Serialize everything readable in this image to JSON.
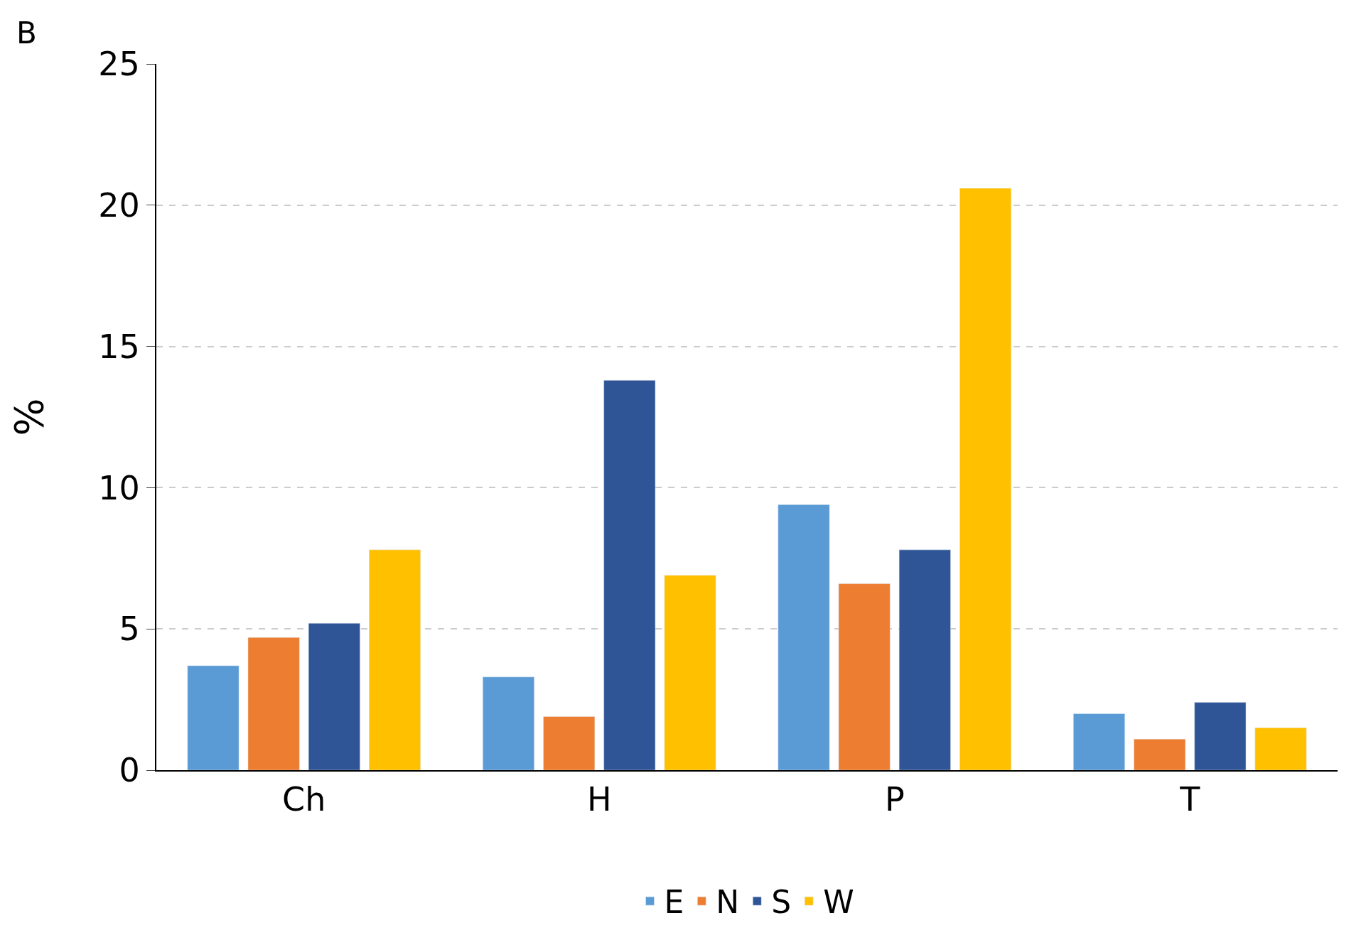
{
  "chart_data": {
    "type": "bar",
    "ylabel": "%",
    "annotations": [
      "B"
    ],
    "categories": [
      "Ch",
      "H",
      "P",
      "T"
    ],
    "series": [
      {
        "name": "E",
        "color": "#5b9bd5",
        "values": [
          3.7,
          3.3,
          9.4,
          2.0
        ]
      },
      {
        "name": "N",
        "color": "#ed7d31",
        "values": [
          4.7,
          1.9,
          6.6,
          1.1
        ]
      },
      {
        "name": "S",
        "color": "#2f5597",
        "values": [
          5.2,
          13.8,
          7.8,
          2.4
        ]
      },
      {
        "name": "W",
        "color": "#ffc000",
        "values": [
          7.8,
          6.9,
          20.6,
          1.5
        ]
      }
    ],
    "ylim": [
      0,
      25
    ],
    "yticks": [
      0,
      5,
      10,
      15,
      20,
      25
    ],
    "grid": "y",
    "legend": "bottom"
  }
}
